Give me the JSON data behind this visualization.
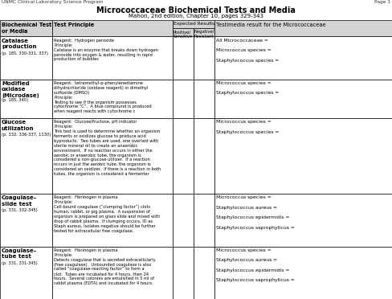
{
  "title": "Micrococcaceae Biochemical Tests and Media",
  "subtitle": "Mahon, 2nd edition, Chapter 10, pages 329-343",
  "header_left": "UNMC Clinical Laboratory Science Program",
  "header_right": "Page 1",
  "rows": [
    {
      "name": "Catalase\nproduction",
      "ref": "(p. 185, 330-331, 337)",
      "reagent": "Reagent:  Hydrogen peroxide",
      "principle": "Principle:\nCatalase is an enzyme that breaks down hydrogen\nperoxide into oxygen & water, resulting in rapid\nproduction of bubbles",
      "results": "All Micrococcaceae =\n\nMicrococcus species =\n\nStaphylococcus species ="
    },
    {
      "name": "Modified\noxidase\n(Microdase)",
      "ref": "(p. 185, 340)",
      "reagent": "Reagent:  tetramethyl-p-phenylenediamine\ndihydrochloride (oxidase reagent) in dimethyl\nsulfoxide (DMSO)",
      "principle": "Principle:\nTesting to see if the organism possesses\ncytochrome “C”.  A blue compound is produced\nwhen reagent reacts with cytochrome c",
      "results": "Micrococcus species =\n\nStaphylococcus species ="
    },
    {
      "name": "Glucose\nutilization",
      "ref": "(p. 332, 336-337, 1130)",
      "reagent": "Reagent:  Glucose/fructose, pH indicator",
      "principle": "Principle:\nThis test is used to determine whether an organism\nferments or oxidizes glucose to produce acid\nbyproducts.  Two tubes are used, one overlaid with\nsterile mineral oil to create an anaerobic\nenvironment.  If no reaction occurs in either the\naerobic or anaerobic tube, the organism is\nconsidered a non-glucose utilizer.  If a reaction\noccurs in just the aerobic tube, the organism is\nconsidered an oxidizer.  If there is a reaction in both\ntubes, the organism is considered a fermenter",
      "results": "Micrococcus species =\n\nStaphylococcus species ="
    },
    {
      "name": "Coagulase–\nslide test",
      "ref": "(p. 331, 332-345)",
      "reagent": "Reagent:  Fibrinogen in plasma",
      "principle": "Principle:\nCell-bound coagulase (“clumping factor”) clots\nhuman, rabbit, or pig plasma.  A suspension of\norganism is prepared on glass slide and mixed with\ndrop of rabbit plasma.  If clumping occurs, ID as\nStaph aureus, Isolates negative should be further\ntested for extracellular free coagulase.",
      "results": "Micrococcus species =\n\nStaphylococcus aureus =\n\nStaphylococcus epidermidis =\n\nStaphylococcus saprophyticus ="
    },
    {
      "name": "Coagulase–\ntube test",
      "ref": "(p. 331, 331-345)",
      "reagent": "Reagent:  Fibrinogen in plasma",
      "principle": "Principle:\nDetects coagulase that is secreted extracellularly\n(free coagulase).  Unbounded coagulase is also\ncalled “coagulase-reacting factor” to form a\nclot.  Tubes are incubated for 4 hours, then 24\nhours.  Several colonies are emulsified in 5 ml of\nrabbit plasma (EDTA) and incubated for 4 hours.",
      "results": "Micrococcus species =\n\nStaphylococcus aureus =\n\nStaphylococcus epidermidis =\n\nStaphylococcus saprophyticus ="
    }
  ],
  "bg_color": "#ffffff",
  "header_bg": "#d4d4d4",
  "border_color": "#000000",
  "text_color": "#000000"
}
